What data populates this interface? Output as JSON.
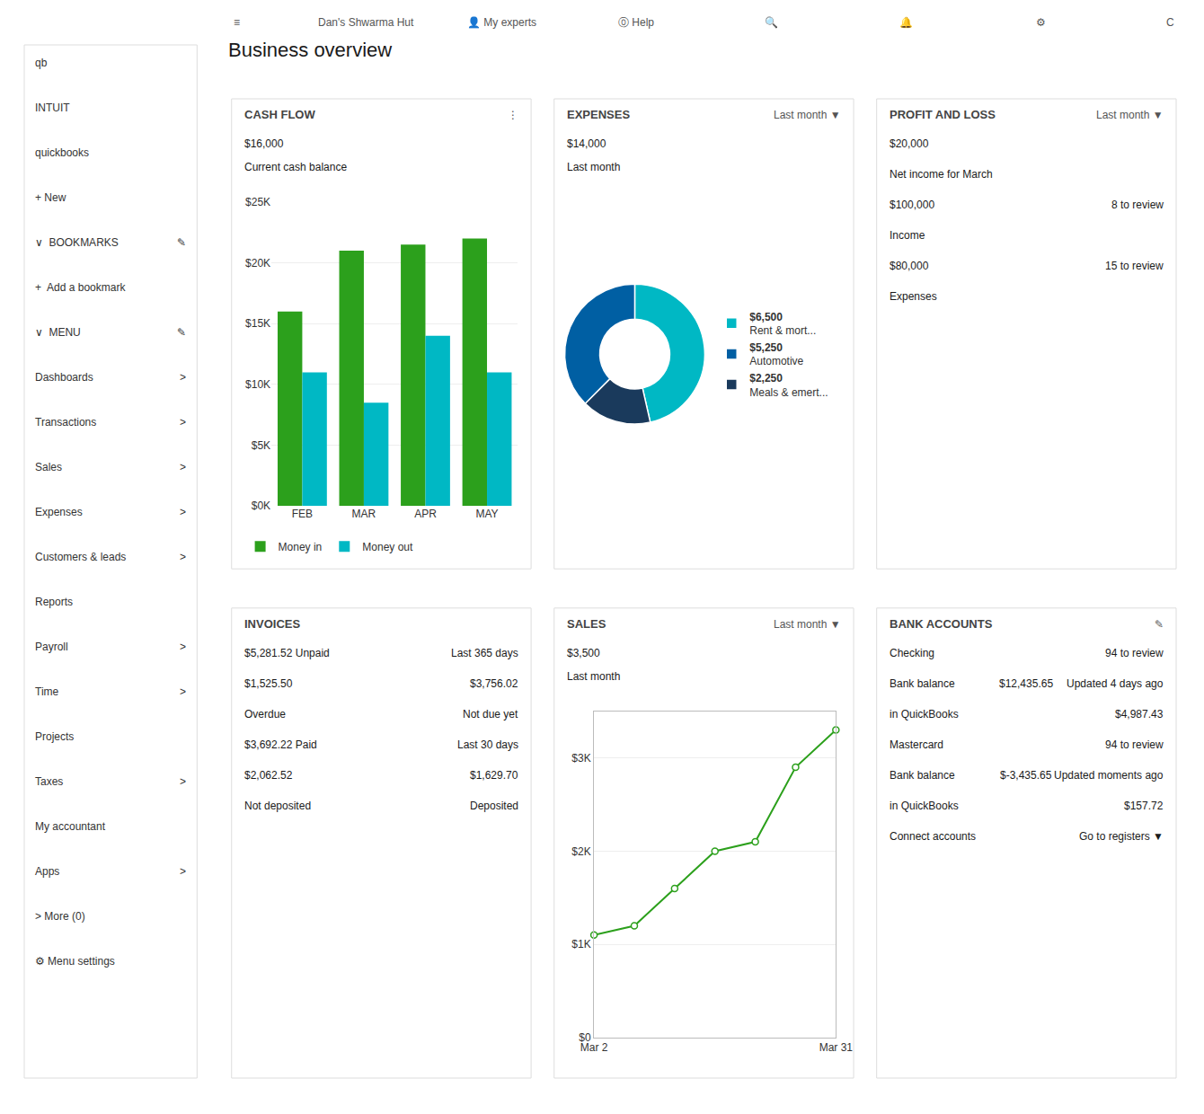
{
  "title": "Business overview",
  "annotations": [
    [
      "≡",
      "Dan's Shwarma Hut",
      "👤 My experts",
      "⓪ Help",
      "🔍",
      "🔔",
      "⚙",
      "C"
    ],
    [
      "qb"
    ],
    [
      "INTUIT"
    ],
    [
      "quickbooks"
    ],
    [
      "+ New"
    ],
    [
      "∨  BOOKMARKS",
      "✎"
    ],
    [
      "+  Add a bookmark"
    ],
    [
      "∨  MENU",
      "✎"
    ],
    [
      "Dashboards",
      ">"
    ],
    [
      "Transactions",
      ">"
    ],
    [
      "Sales",
      ">"
    ],
    [
      "Expenses",
      ">"
    ],
    [
      "Customers & leads",
      ">"
    ],
    [
      "Reports"
    ],
    [
      "Payroll",
      ">"
    ],
    [
      "Time",
      ">"
    ],
    [
      "Projects"
    ],
    [
      "Taxes",
      ">"
    ],
    [
      "My accountant"
    ],
    [
      "Apps",
      ">"
    ],
    [
      "> More (0)"
    ],
    [
      "⚙ Menu settings"
    ]
  ],
  "chart_data": [
    {
      "type": "bar",
      "title": "CASH FLOW",
      "subtitle": "⋮",
      "annotations": [
        [
          "$16,000"
        ],
        [
          "Current cash balance"
        ]
      ],
      "categories": [
        "FEB",
        "MAR",
        "APR",
        "MAY"
      ],
      "series": [
        {
          "name": "Money in",
          "color": "#2ca01c",
          "values": [
            16000,
            21000,
            21500,
            22000
          ]
        },
        {
          "name": "Money out",
          "color": "#00b8c4",
          "values": [
            11000,
            8500,
            14000,
            11000
          ]
        }
      ],
      "ylim": [
        0,
        25000
      ],
      "yticks": [
        {
          "value": 0,
          "label": "$0K"
        },
        {
          "value": 5000,
          "label": "$5K"
        },
        {
          "value": 10000,
          "label": "$10K"
        },
        {
          "value": 15000,
          "label": "$15K"
        },
        {
          "value": 20000,
          "label": "$20K"
        },
        {
          "value": 25000,
          "label": "$25K"
        }
      ],
      "grid": true,
      "legend": "lower left"
    },
    {
      "type": "donut",
      "title": "EXPENSES",
      "subtitle": "Last month ▼",
      "annotations": [
        [
          "$14,000"
        ],
        [
          "Last month"
        ]
      ],
      "categories": [
        "Rent & mort...",
        "Automotive",
        "Meals & emert..."
      ],
      "values": [
        6500,
        5250,
        2250
      ],
      "value_labels": [
        "$6,500",
        "$5,250",
        "$2,250"
      ],
      "colors": [
        "#00b8c4",
        "#005fa3",
        "#1a3a5c"
      ],
      "legend": "right"
    },
    {
      "type": "text",
      "title": "PROFIT AND LOSS",
      "subtitle": "Last month ▼",
      "annotations": [
        [
          "$20,000"
        ],
        [
          "Net income for March"
        ],
        [
          "$100,000",
          "8 to review"
        ],
        [
          "Income"
        ],
        [
          "$80,000",
          "15 to review"
        ],
        [
          "Expenses"
        ]
      ]
    },
    {
      "type": "text",
      "title": "INVOICES",
      "annotations": [
        [
          "$5,281.52 Unpaid",
          "Last 365 days"
        ],
        [
          "$1,525.50",
          "$3,756.02"
        ],
        [
          "Overdue",
          "Not due yet"
        ],
        [
          "$3,692.22 Paid",
          "Last 30 days"
        ],
        [
          "$2,062.52",
          "$1,629.70"
        ],
        [
          "Not deposited",
          "Deposited"
        ]
      ]
    },
    {
      "type": "line",
      "title": "SALES",
      "subtitle": "Last month ▼",
      "annotations": [
        [
          "$3,500"
        ],
        [
          "Last month"
        ]
      ],
      "x": [
        0,
        1,
        2,
        3,
        4,
        5,
        6
      ],
      "values": [
        1100,
        1200,
        1600,
        2000,
        2100,
        2900,
        3300
      ],
      "color": "#2ca01c",
      "marker": "circle",
      "xlim": [
        0,
        6
      ],
      "xticks": [
        {
          "value": 0,
          "label": "Mar 2"
        },
        {
          "value": 6,
          "label": "Mar 31"
        }
      ],
      "ylim": [
        0,
        3500
      ],
      "yticks": [
        {
          "value": 0,
          "label": "$0"
        },
        {
          "value": 1000,
          "label": "$1K"
        },
        {
          "value": 2000,
          "label": "$2K"
        },
        {
          "value": 3000,
          "label": "$3K"
        }
      ],
      "grid": true
    },
    {
      "type": "text",
      "title": "BANK ACCOUNTS",
      "subtitle": "✎",
      "annotations": [
        [
          "Checking",
          "94 to review"
        ],
        [
          "Bank balance",
          "$12,435.65",
          "Updated 4 days ago"
        ],
        [
          "in QuickBooks",
          "$4,987.43"
        ],
        [
          "Mastercard",
          "94 to review"
        ],
        [
          "Bank balance",
          "$-3,435.65",
          "Updated moments ago"
        ],
        [
          "in QuickBooks",
          "$157.72"
        ],
        [
          "Connect accounts",
          "Go to registers ▼"
        ]
      ]
    }
  ]
}
